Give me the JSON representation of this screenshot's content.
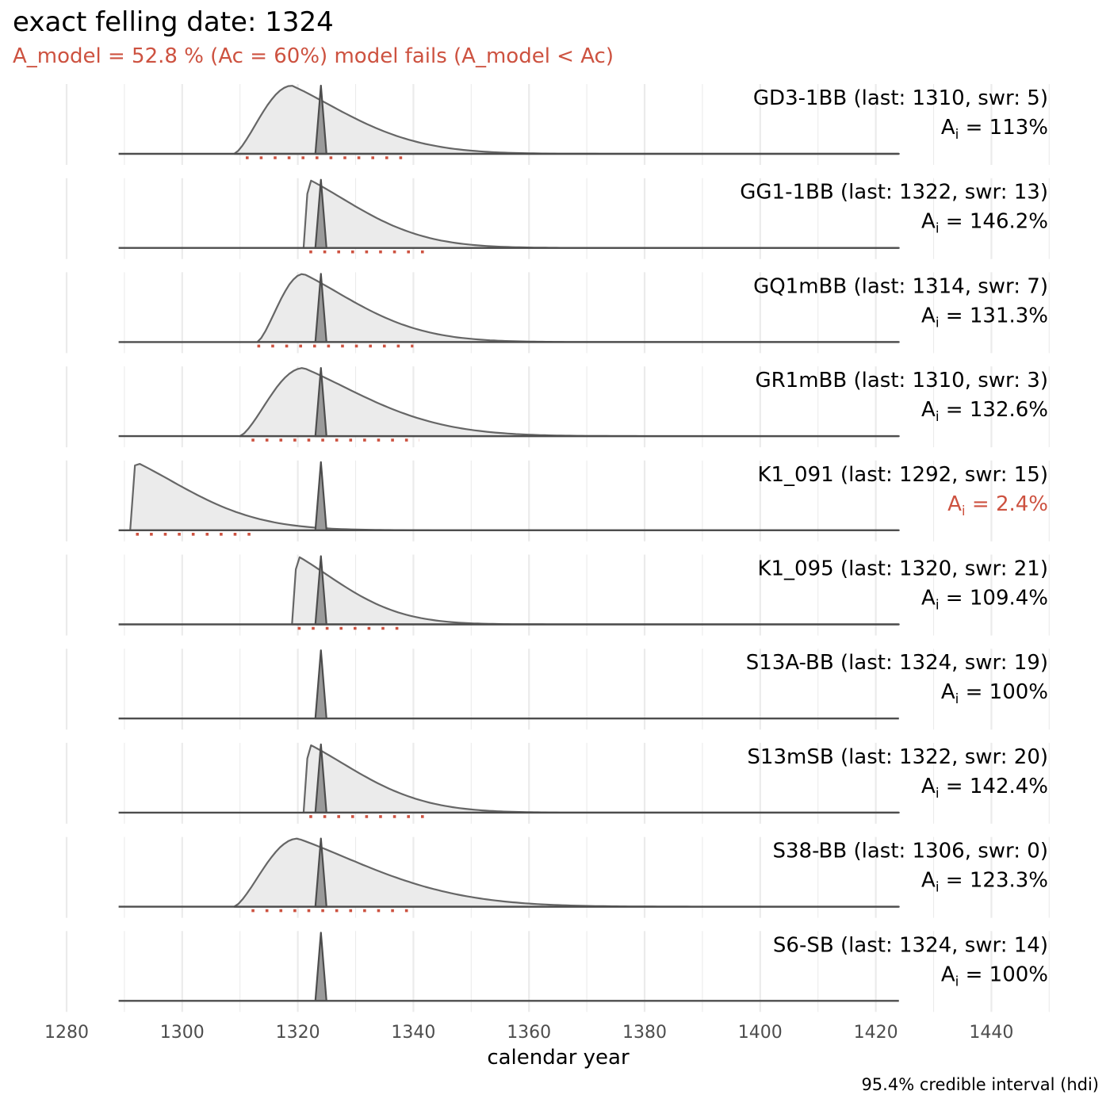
{
  "title": "exact felling date: 1324",
  "subtitle": "A_model =  52.8 % (Ac = 60%) model fails (A_model < Ac)",
  "caption": "95.4% credible interval (hdi)",
  "colors": {
    "fail": "#cd5240",
    "line": "#4d4d4d",
    "curve": "#666666",
    "fill": "#ebebeb",
    "grid": "#ebebeb",
    "hdi": "#cd5240",
    "text": "#000000",
    "tick": "#4d4d4d"
  },
  "chart_data": {
    "type": "area",
    "xlabel": "calendar year",
    "ylabel": "",
    "x_range": [
      1280,
      1450
    ],
    "x_ticks": [
      1280,
      1300,
      1320,
      1340,
      1360,
      1380,
      1400,
      1420,
      1440
    ],
    "felling_date": 1324,
    "grid": true,
    "hdi_note": "95.4% credible interval (hdi)",
    "series": [
      {
        "name": "GD3-1BB",
        "label": "GD3-1BB (last: 1310, swr: 5)",
        "last": 1310,
        "swr": 5,
        "agreement": "113%",
        "fails": false,
        "density_start": 1309,
        "density_peak": 1319,
        "density_end": 1350,
        "hdi": [
          1311,
          1339
        ]
      },
      {
        "name": "GG1-1BB",
        "label": "GG1-1BB (last: 1322, swr: 13)",
        "last": 1322,
        "swr": 13,
        "agreement": "146.2%",
        "fails": false,
        "density_start": 1321,
        "density_peak": 1322,
        "density_end": 1350,
        "hdi": [
          1322,
          1343
        ]
      },
      {
        "name": "GQ1mBB",
        "label": "GQ1mBB (last: 1314, swr: 7)",
        "last": 1314,
        "swr": 7,
        "agreement": "131.3%",
        "fails": false,
        "density_start": 1313,
        "density_peak": 1321,
        "density_end": 1350,
        "hdi": [
          1313,
          1340
        ]
      },
      {
        "name": "GR1mBB",
        "label": "GR1mBB (last: 1310, swr: 3)",
        "last": 1310,
        "swr": 3,
        "agreement": "132.6%",
        "fails": false,
        "density_start": 1310,
        "density_peak": 1321,
        "density_end": 1355,
        "hdi": [
          1312,
          1341
        ]
      },
      {
        "name": "K1_091",
        "label": "K1_091 (last: 1292, swr: 15)",
        "last": 1292,
        "swr": 15,
        "agreement": "2.4%",
        "fails": true,
        "density_start": 1291,
        "density_peak": 1292,
        "density_end": 1322,
        "hdi": [
          1292,
          1312
        ]
      },
      {
        "name": "K1_095",
        "label": "K1_095 (last: 1320, swr: 21)",
        "last": 1320,
        "swr": 21,
        "agreement": "109.4%",
        "fails": false,
        "density_start": 1319,
        "density_peak": 1320,
        "density_end": 1345,
        "hdi": [
          1320,
          1338
        ]
      },
      {
        "name": "S13A-BB",
        "label": "S13A-BB (last: 1324, swr: 19)",
        "last": 1324,
        "swr": 19,
        "agreement": "100%",
        "fails": false,
        "density_start": null,
        "density_peak": null,
        "density_end": null,
        "hdi": null
      },
      {
        "name": "S13mSB",
        "label": "S13mSB (last: 1322, swr: 20)",
        "last": 1322,
        "swr": 20,
        "agreement": "142.4%",
        "fails": false,
        "density_start": 1321,
        "density_peak": 1322,
        "density_end": 1350,
        "hdi": [
          1322,
          1343
        ]
      },
      {
        "name": "S38-BB",
        "label": "S38-BB (last: 1306, swr: 0)",
        "last": 1306,
        "swr": 0,
        "agreement": "123.3%",
        "fails": false,
        "density_start": 1309,
        "density_peak": 1320,
        "density_end": 1360,
        "hdi": [
          1312,
          1340
        ]
      },
      {
        "name": "S6-SB",
        "label": "S6-SB (last: 1324, swr: 14)",
        "last": 1324,
        "swr": 14,
        "agreement": "100%",
        "fails": false,
        "density_start": null,
        "density_peak": null,
        "density_end": null,
        "hdi": null
      }
    ]
  }
}
